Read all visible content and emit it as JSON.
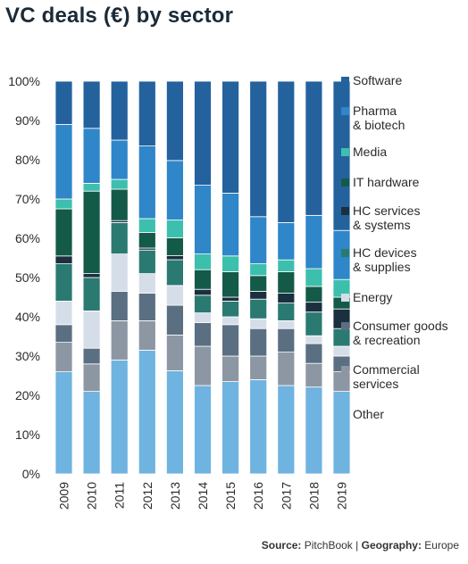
{
  "title": "VC deals (€) by sector",
  "source": {
    "source_label": "Source:",
    "source_value": "PitchBook",
    "separator": "|",
    "geo_label": "Geography:",
    "geo_value": "Europe"
  },
  "chart_data": {
    "type": "bar",
    "stacked": true,
    "normalized": true,
    "categories": [
      "2009",
      "2010",
      "2011",
      "2012",
      "2013",
      "2014",
      "2015",
      "2016",
      "2017",
      "2018",
      "2019"
    ],
    "ylim": [
      0,
      100
    ],
    "ytick_labels": [
      "0%",
      "10%",
      "20%",
      "30%",
      "40%",
      "50%",
      "60%",
      "70%",
      "80%",
      "90%",
      "100%"
    ],
    "legend_position": "right",
    "series": [
      {
        "name": "Other",
        "legend_label": [
          "Other"
        ],
        "color": "#6fb3e0",
        "values": [
          26,
          21,
          29,
          31.5,
          26,
          22.5,
          23.5,
          24,
          22.5,
          22,
          21
        ]
      },
      {
        "name": "Commercial services",
        "legend_label": [
          "Commercial",
          "services"
        ],
        "color": "#8c97a3",
        "values": [
          7.5,
          7,
          10,
          7.5,
          9,
          10,
          6.5,
          6,
          8.5,
          6,
          5
        ]
      },
      {
        "name": "Consumer goods & recreation",
        "legend_label": [
          "Consumer goods",
          "& recreation"
        ],
        "color": "#5b6f82",
        "values": [
          4.5,
          4,
          7.5,
          7,
          7.5,
          6,
          8,
          7,
          6,
          5,
          4
        ]
      },
      {
        "name": "Energy",
        "legend_label": [
          "Energy"
        ],
        "color": "#d5dee8",
        "values": [
          6,
          9.5,
          9.5,
          5,
          5,
          2.5,
          2,
          2.5,
          2,
          2,
          2.5
        ]
      },
      {
        "name": "HC devices & supplies",
        "legend_label": [
          "HC devices",
          "& supplies"
        ],
        "color": "#2a7a72",
        "values": [
          9.5,
          8.5,
          8,
          6,
          6.5,
          4.5,
          4,
          5,
          4.5,
          6,
          4.5
        ]
      },
      {
        "name": "HC services & systems",
        "legend_label": [
          "HC services",
          "& systems"
        ],
        "color": "#1a2f3f",
        "values": [
          2,
          1,
          0.5,
          0.5,
          1,
          1.5,
          1,
          2,
          2.5,
          2.5,
          5
        ]
      },
      {
        "name": "IT hardware",
        "legend_label": [
          "IT hardware"
        ],
        "color": "#145a48",
        "values": [
          12,
          21,
          8,
          4,
          4.5,
          5,
          6.5,
          4,
          5.5,
          4,
          3
        ]
      },
      {
        "name": "Media",
        "legend_label": [
          "Media"
        ],
        "color": "#3dbfae",
        "values": [
          2.5,
          2,
          2.5,
          3.5,
          4.5,
          4,
          4,
          3,
          3,
          4.5,
          4.5
        ]
      },
      {
        "name": "Pharma & biotech",
        "legend_label": [
          "Pharma",
          "& biotech"
        ],
        "color": "#2f86c8",
        "values": [
          19,
          14,
          10,
          18.5,
          15,
          17.5,
          16,
          12,
          9.5,
          13.5,
          12.5
        ]
      },
      {
        "name": "Software",
        "legend_label": [
          "Software"
        ],
        "color": "#24629e",
        "values": [
          11,
          12,
          15,
          16.5,
          20,
          26.5,
          28.5,
          34.5,
          36,
          34,
          38
        ]
      }
    ]
  }
}
